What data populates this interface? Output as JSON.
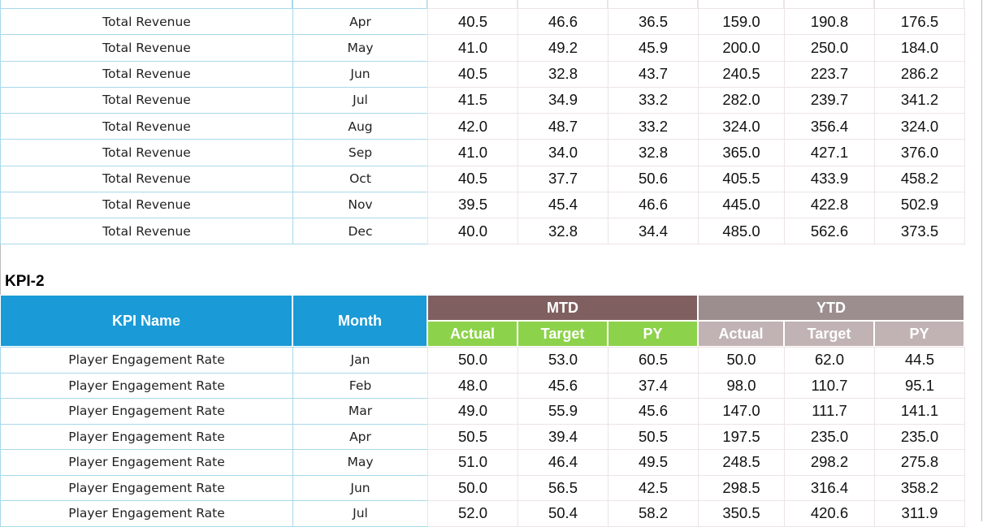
{
  "table1": {
    "rows": [
      [
        "Total Revenue",
        "Apr",
        "40.5",
        "46.6",
        "36.5",
        "159.0",
        "190.8",
        "176.5"
      ],
      [
        "Total Revenue",
        "May",
        "41.0",
        "49.2",
        "45.9",
        "200.0",
        "250.0",
        "184.0"
      ],
      [
        "Total Revenue",
        "Jun",
        "40.5",
        "32.8",
        "43.7",
        "240.5",
        "223.7",
        "286.2"
      ],
      [
        "Total Revenue",
        "Jul",
        "41.5",
        "34.9",
        "33.2",
        "282.0",
        "239.7",
        "341.2"
      ],
      [
        "Total Revenue",
        "Aug",
        "42.0",
        "48.7",
        "33.2",
        "324.0",
        "356.4",
        "324.0"
      ],
      [
        "Total Revenue",
        "Sep",
        "41.0",
        "34.0",
        "32.8",
        "365.0",
        "427.1",
        "376.0"
      ],
      [
        "Total Revenue",
        "Oct",
        "40.5",
        "37.7",
        "50.6",
        "405.5",
        "433.9",
        "458.2"
      ],
      [
        "Total Revenue",
        "Nov",
        "39.5",
        "45.4",
        "46.6",
        "445.0",
        "422.8",
        "502.9"
      ],
      [
        "Total Revenue",
        "Dec",
        "40.0",
        "32.8",
        "34.4",
        "485.0",
        "562.6",
        "373.5"
      ]
    ]
  },
  "kpi2": {
    "title": "KPI-2",
    "headers": {
      "kpi_name": "KPI Name",
      "month": "Month",
      "mtd": "MTD",
      "ytd": "YTD",
      "sub": [
        "Actual",
        "Target",
        "PY",
        "Actual",
        "Target",
        "PY"
      ]
    },
    "rows": [
      [
        "Player Engagement Rate",
        "Jan",
        "50.0",
        "53.0",
        "60.5",
        "50.0",
        "62.0",
        "44.5"
      ],
      [
        "Player Engagement Rate",
        "Feb",
        "48.0",
        "45.6",
        "37.4",
        "98.0",
        "110.7",
        "95.1"
      ],
      [
        "Player Engagement Rate",
        "Mar",
        "49.0",
        "55.9",
        "45.6",
        "147.0",
        "111.7",
        "141.1"
      ],
      [
        "Player Engagement Rate",
        "Apr",
        "50.5",
        "39.4",
        "50.5",
        "197.5",
        "235.0",
        "235.0"
      ],
      [
        "Player Engagement Rate",
        "May",
        "51.0",
        "46.4",
        "49.5",
        "248.5",
        "298.2",
        "275.8"
      ],
      [
        "Player Engagement Rate",
        "Jun",
        "50.0",
        "56.5",
        "42.5",
        "298.5",
        "316.4",
        "358.2"
      ],
      [
        "Player Engagement Rate",
        "Jul",
        "52.0",
        "50.4",
        "58.2",
        "350.5",
        "420.6",
        "311.9"
      ]
    ]
  }
}
